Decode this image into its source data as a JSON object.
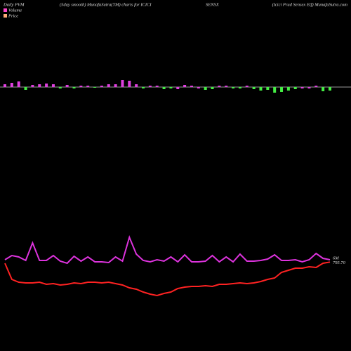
{
  "chart_data": {
    "type": "pvm",
    "title": "Daily PVM",
    "subtitle": "(5day smooth) MunafaSutra(TM) charts for ICICI",
    "symbol": "SENSX",
    "source": "(Icici Prud Sensex Etf) MunafaSutra.com",
    "background": "#000000",
    "volume": {
      "name": "Volume",
      "color": "#ff44cc",
      "values": [
        4,
        6,
        8,
        -4,
        3,
        4,
        5,
        4,
        -2,
        3,
        -2,
        2,
        2,
        -1,
        2,
        4,
        4,
        10,
        9,
        4,
        -2,
        2,
        2,
        -3,
        -2,
        -3,
        3,
        2,
        -2,
        -4,
        -3,
        2,
        2,
        -2,
        -2,
        2,
        -3,
        -5,
        -4,
        -8,
        -7,
        -5,
        -3,
        -2,
        -2,
        2,
        -6,
        -5
      ],
      "colors": [
        "#e040e0",
        "#e040e0",
        "#e040e0",
        "#44ee44",
        "#e040e0",
        "#e040e0",
        "#e040e0",
        "#e040e0",
        "#44ee44",
        "#e040e0",
        "#44ee44",
        "#e040e0",
        "#e040e0",
        "#44ee44",
        "#e040e0",
        "#e040e0",
        "#e040e0",
        "#e040e0",
        "#e040e0",
        "#e040e0",
        "#44ee44",
        "#e040e0",
        "#e040e0",
        "#44ee44",
        "#44ee44",
        "#e040e0",
        "#e040e0",
        "#e040e0",
        "#e040e0",
        "#44ee44",
        "#44ee44",
        "#e040e0",
        "#e040e0",
        "#44ee44",
        "#44ee44",
        "#e040e0",
        "#44ee44",
        "#44ee44",
        "#44ee44",
        "#44ee44",
        "#44ee44",
        "#44ee44",
        "#44ee44",
        "#e040e0",
        "#e040e0",
        "#e040e0",
        "#44ee44",
        "#44ee44"
      ],
      "ylim": [
        -20,
        20
      ]
    },
    "series": [
      {
        "name": "Volume",
        "color": "#dd33dd",
        "ylim": [
          0,
          120
        ],
        "end_label": "6M",
        "values": [
          99,
          105,
          103,
          98,
          123,
          98,
          98,
          105,
          97,
          94,
          104,
          97,
          103,
          96,
          96,
          95,
          103,
          97,
          131,
          107,
          98,
          96,
          99,
          97,
          103,
          96,
          106,
          96,
          96,
          97,
          105,
          96,
          103,
          96,
          107,
          97,
          97,
          98,
          100,
          106,
          98,
          98,
          99,
          96,
          99,
          108,
          101,
          99
        ]
      },
      {
        "name": "Price",
        "color": "#ff2222",
        "ylim": [
          700,
          820
        ],
        "end_label": "795.70",
        "values": [
          794,
          771,
          767,
          766,
          766,
          767,
          764,
          765,
          763,
          764,
          766,
          765,
          767,
          767,
          766,
          767,
          765,
          763,
          759,
          757,
          753,
          750,
          748,
          751,
          753,
          758,
          760,
          761,
          761,
          762,
          761,
          764,
          764,
          765,
          766,
          765,
          766,
          768,
          771,
          773,
          781,
          784,
          787,
          787,
          789,
          788,
          794,
          795.7
        ]
      }
    ]
  }
}
